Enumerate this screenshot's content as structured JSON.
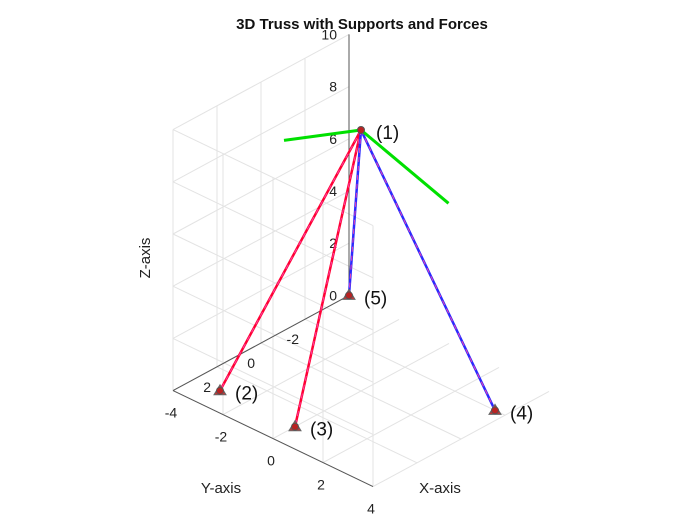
{
  "chart_data": {
    "type": "3d-line",
    "title": "3D Truss with Supports and Forces",
    "xlabel": "X-axis",
    "ylabel": "Y-axis",
    "zlabel": "Z-axis",
    "xlim": [
      -4,
      4
    ],
    "ylim": [
      -4,
      4
    ],
    "zlim": [
      0,
      10
    ],
    "x_ticks": [
      "-4",
      "-2",
      "0",
      "2",
      "4"
    ],
    "y_ticks": [
      "-2",
      "0",
      "2"
    ],
    "z_ticks": [
      "0",
      "2",
      "4",
      "6",
      "8",
      "10"
    ],
    "grid": true,
    "nodes": [
      {
        "id": 1,
        "label": "(1)",
        "x": 0,
        "y": 0,
        "z": 10
      },
      {
        "id": 2,
        "label": "(2)",
        "x": -3,
        "y": 3,
        "z": 0
      },
      {
        "id": 3,
        "label": "(3)",
        "x": 0,
        "y": 3,
        "z": 0
      },
      {
        "id": 4,
        "label": "(4)",
        "x": 3.6,
        "y": -2,
        "z": 0
      },
      {
        "id": 5,
        "label": "(5)",
        "x": -4,
        "y": -4,
        "z": 0
      }
    ],
    "members": [
      {
        "from": 1,
        "to": 2,
        "color": "#ff0033",
        "style": "solid"
      },
      {
        "from": 1,
        "to": 3,
        "color": "#ff0033",
        "style": "solid"
      },
      {
        "from": 1,
        "to": 4,
        "color": "#2a2aff",
        "style": "solid"
      },
      {
        "from": 1,
        "to": 5,
        "color": "#2a2aff",
        "style": "solid"
      }
    ],
    "forces": [
      {
        "node": 1,
        "dx": 0,
        "dy": 3.5,
        "dz": 1.2,
        "color": "#00e000"
      },
      {
        "node": 1,
        "dx": 3.5,
        "dy": 0,
        "dz": -1.2,
        "color": "#00e000"
      }
    ],
    "supports": [
      2,
      3,
      4,
      5
    ]
  }
}
